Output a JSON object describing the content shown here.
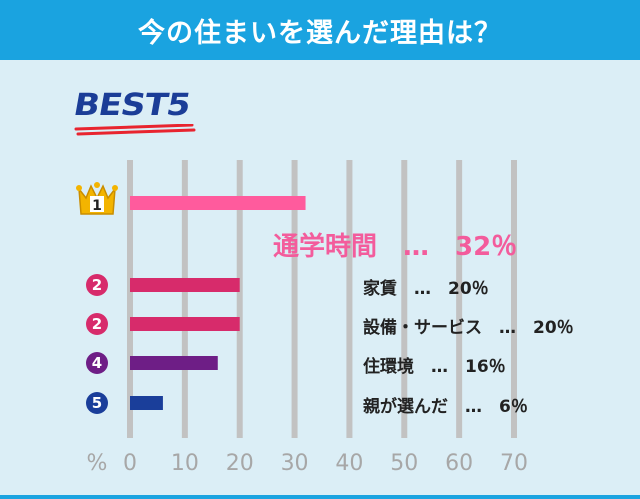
{
  "header": {
    "title": "今の住まいを選んだ理由は？"
  },
  "badge": {
    "text": "BEST5"
  },
  "chart_data": {
    "type": "bar",
    "orientation": "horizontal",
    "title": "今の住まいを選んだ理由は？",
    "xlabel": "%",
    "xlim": [
      0,
      70
    ],
    "x_ticks": [
      0,
      10,
      20,
      30,
      40,
      50,
      60,
      70
    ],
    "grid": true,
    "items": [
      {
        "rank": "1",
        "label": "通学時間",
        "value": 32,
        "display": "通学時間　…　32％",
        "color": "#ff5b9d"
      },
      {
        "rank": "2",
        "label": "家賃",
        "value": 20,
        "display": "家賃　…　20％",
        "color": "#d72b6b"
      },
      {
        "rank": "2",
        "label": "設備・サービス",
        "value": 20,
        "display": "設備・サービス　…　20％",
        "color": "#d72b6b"
      },
      {
        "rank": "4",
        "label": "住環境",
        "value": 16,
        "display": "住環境　…　16％",
        "color": "#6e1e86"
      },
      {
        "rank": "5",
        "label": "親が選んだ",
        "value": 6,
        "display": "親が選んだ　…　6％",
        "color": "#1a3e9a"
      }
    ],
    "rank_colors": [
      "#f3b400",
      "#d72b6b",
      "#d72b6b",
      "#6e1e86",
      "#1a3e9a"
    ]
  }
}
